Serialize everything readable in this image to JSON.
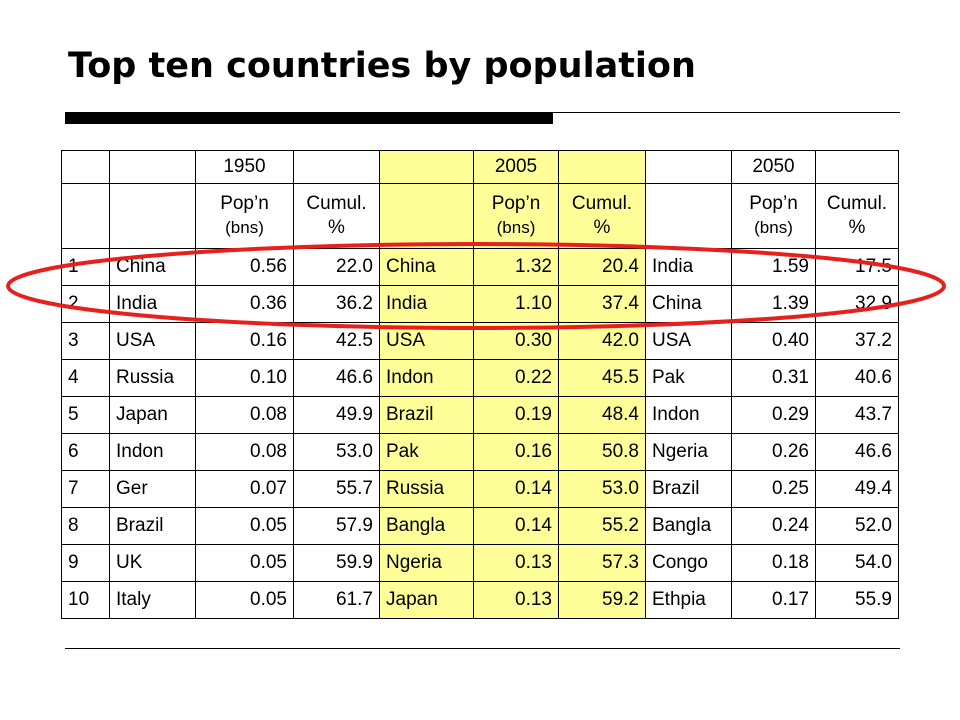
{
  "title": "Top ten countries by population",
  "table": {
    "years": [
      "1950",
      "2005",
      "2050"
    ],
    "col_headers": {
      "pop_line1": "Pop’n",
      "pop_line2": "(bns)",
      "cum_line1": "Cumul.",
      "cum_line2": "%"
    },
    "rows": [
      {
        "rank": "1",
        "c1950": "China",
        "p1950": "0.56",
        "cu1950": "22.0",
        "c2005": "China",
        "p2005": "1.32",
        "cu2005": "20.4",
        "c2050": "India",
        "p2050": "1.59",
        "cu2050": "17.5"
      },
      {
        "rank": "2",
        "c1950": "India",
        "p1950": "0.36",
        "cu1950": "36.2",
        "c2005": "India",
        "p2005": "1.10",
        "cu2005": "37.4",
        "c2050": "China",
        "p2050": "1.39",
        "cu2050": "32.9"
      },
      {
        "rank": "3",
        "c1950": "USA",
        "p1950": "0.16",
        "cu1950": "42.5",
        "c2005": "USA",
        "p2005": "0.30",
        "cu2005": "42.0",
        "c2050": "USA",
        "p2050": "0.40",
        "cu2050": "37.2"
      },
      {
        "rank": "4",
        "c1950": "Russia",
        "p1950": "0.10",
        "cu1950": "46.6",
        "c2005": "Indon",
        "p2005": "0.22",
        "cu2005": "45.5",
        "c2050": "Pak",
        "p2050": "0.31",
        "cu2050": "40.6"
      },
      {
        "rank": "5",
        "c1950": "Japan",
        "p1950": "0.08",
        "cu1950": "49.9",
        "c2005": "Brazil",
        "p2005": "0.19",
        "cu2005": "48.4",
        "c2050": "Indon",
        "p2050": "0.29",
        "cu2050": "43.7"
      },
      {
        "rank": "6",
        "c1950": "Indon",
        "p1950": "0.08",
        "cu1950": "53.0",
        "c2005": "Pak",
        "p2005": "0.16",
        "cu2005": "50.8",
        "c2050": "Ngeria",
        "p2050": "0.26",
        "cu2050": "46.6"
      },
      {
        "rank": "7",
        "c1950": "Ger",
        "p1950": "0.07",
        "cu1950": "55.7",
        "c2005": "Russia",
        "p2005": "0.14",
        "cu2005": "53.0",
        "c2050": "Brazil",
        "p2050": "0.25",
        "cu2050": "49.4"
      },
      {
        "rank": "8",
        "c1950": "Brazil",
        "p1950": "0.05",
        "cu1950": "57.9",
        "c2005": "Bangla",
        "p2005": "0.14",
        "cu2005": "55.2",
        "c2050": "Bangla",
        "p2050": "0.24",
        "cu2050": "52.0"
      },
      {
        "rank": "9",
        "c1950": "UK",
        "p1950": "0.05",
        "cu1950": "59.9",
        "c2005": "Ngeria",
        "p2005": "0.13",
        "cu2005": "57.3",
        "c2050": "Congo",
        "p2050": "0.18",
        "cu2050": "54.0"
      },
      {
        "rank": "10",
        "c1950": "Italy",
        "p1950": "0.05",
        "cu1950": "61.7",
        "c2005": "Japan",
        "p2005": "0.13",
        "cu2005": "59.2",
        "c2050": "Ethpia",
        "p2050": "0.17",
        "cu2050": "55.9"
      }
    ]
  },
  "colors": {
    "highlight_2005": "#ffff99",
    "circle_annotation": "#e8201b"
  }
}
